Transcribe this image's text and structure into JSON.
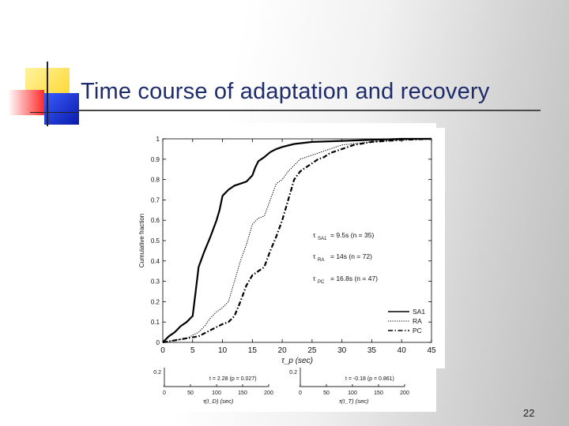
{
  "slide": {
    "title": "Time course of adaptation and recovery",
    "page_number": "22"
  },
  "colors": {
    "title": "#1f2c6b",
    "series_line": "#000000",
    "deco_yellow": "#ffd21a",
    "deco_red": "#ff2a2a",
    "deco_blue": "#1a2fd0"
  },
  "chart_data": [
    {
      "type": "line",
      "ylabel": "Cumulative fraction",
      "xlabel": "τ_p (sec)",
      "xlim": [
        0,
        45
      ],
      "ylim": [
        0,
        1
      ],
      "x_ticks": [
        "0",
        "5",
        "10",
        "15",
        "20",
        "25",
        "30",
        "35",
        "40",
        "45"
      ],
      "y_ticks": [
        "0",
        "0.1",
        "0.2",
        "0.3",
        "0.4",
        "0.5",
        "0.6",
        "0.7",
        "0.8",
        "0.9",
        "1"
      ],
      "grid": false,
      "legend_position": "bottom-right",
      "annotations": [
        {
          "sym": "τ",
          "sub": "SA1",
          "text": "= 9.5s (n = 35)"
        },
        {
          "sym": "τ",
          "sub": "RA",
          "text": "= 14s (n = 72)"
        },
        {
          "sym": "τ",
          "sub": "PC",
          "text": "= 16.8s (n = 47)"
        }
      ],
      "series": [
        {
          "name": "SA1",
          "style": "solid",
          "x": [
            0,
            1,
            2,
            3,
            4,
            5,
            5.5,
            6,
            7,
            8,
            9,
            9.5,
            10,
            11,
            12,
            13,
            14,
            15,
            15.5,
            16,
            17,
            18,
            19,
            20,
            22,
            25,
            30,
            35,
            40,
            45
          ],
          "y": [
            0,
            0.03,
            0.05,
            0.08,
            0.1,
            0.13,
            0.25,
            0.37,
            0.45,
            0.52,
            0.6,
            0.65,
            0.72,
            0.75,
            0.77,
            0.78,
            0.79,
            0.82,
            0.86,
            0.89,
            0.91,
            0.935,
            0.95,
            0.96,
            0.975,
            0.985,
            0.99,
            0.995,
            1,
            1
          ]
        },
        {
          "name": "RA",
          "style": "dotted",
          "x": [
            0,
            2,
            4,
            6,
            7,
            8,
            9,
            10,
            11,
            12,
            13,
            14,
            15,
            16,
            17,
            18,
            19,
            20,
            21,
            22,
            23,
            24,
            26,
            28,
            30,
            35,
            40,
            45
          ],
          "y": [
            0,
            0.01,
            0.02,
            0.05,
            0.08,
            0.12,
            0.15,
            0.17,
            0.2,
            0.3,
            0.4,
            0.48,
            0.58,
            0.61,
            0.62,
            0.7,
            0.78,
            0.8,
            0.84,
            0.87,
            0.9,
            0.91,
            0.93,
            0.95,
            0.97,
            0.985,
            0.995,
            1
          ]
        },
        {
          "name": "PC",
          "style": "dashdot",
          "x": [
            0,
            2,
            4,
            6,
            8,
            10,
            11,
            12,
            13,
            14,
            15,
            16,
            17,
            18,
            19,
            20,
            21,
            22,
            23,
            24,
            25,
            26,
            27,
            28,
            30,
            32,
            35,
            40,
            45
          ],
          "y": [
            0,
            0.01,
            0.02,
            0.03,
            0.06,
            0.09,
            0.1,
            0.13,
            0.2,
            0.28,
            0.33,
            0.35,
            0.37,
            0.45,
            0.52,
            0.6,
            0.7,
            0.8,
            0.84,
            0.86,
            0.88,
            0.9,
            0.91,
            0.93,
            0.95,
            0.97,
            0.985,
            0.995,
            1
          ]
        }
      ]
    },
    {
      "type": "scatter",
      "partial": true,
      "xlabel": "τ(I_D) (sec)",
      "x_ticks": [
        "0",
        "50",
        "100",
        "150",
        "200"
      ],
      "y_ticks": [
        "0.2"
      ],
      "annotation": "t = 2.28 (p = 0.027)"
    },
    {
      "type": "scatter",
      "partial": true,
      "xlabel": "τ(I_T) (sec)",
      "x_ticks": [
        "0",
        "50",
        "100",
        "150",
        "200"
      ],
      "y_ticks": [
        "0.2"
      ],
      "annotation": "t = -0.18 (p = 0.861)"
    }
  ]
}
